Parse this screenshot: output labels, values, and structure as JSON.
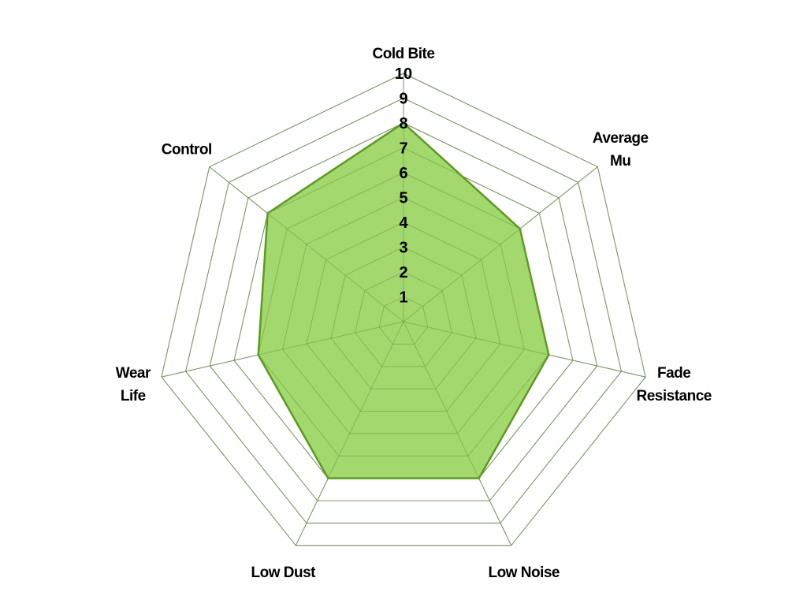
{
  "chart_data": {
    "type": "radar",
    "categories": [
      "Cold Bite",
      "Average Mu",
      "Fade Resistance",
      "Low Noise",
      "Low Dust",
      "Wear Life",
      "Control"
    ],
    "category_lines": [
      [
        "Cold Bite"
      ],
      [
        "Average",
        "Mu"
      ],
      [
        "Fade",
        "Resistance"
      ],
      [
        "Low Noise"
      ],
      [
        "Low Dust"
      ],
      [
        "Wear",
        "Life"
      ],
      [
        "Control"
      ]
    ],
    "series": [
      {
        "values": [
          8,
          6,
          6,
          7,
          7,
          6,
          7
        ],
        "fill": "#a3d86f",
        "stroke": "#5b9a1e"
      }
    ],
    "rlim": [
      0,
      10
    ],
    "tick_labels": [
      "1",
      "2",
      "3",
      "4",
      "5",
      "6",
      "7",
      "8",
      "9",
      "10"
    ],
    "grid": true,
    "grid_color": "#8c8c8c",
    "legend": "none"
  }
}
